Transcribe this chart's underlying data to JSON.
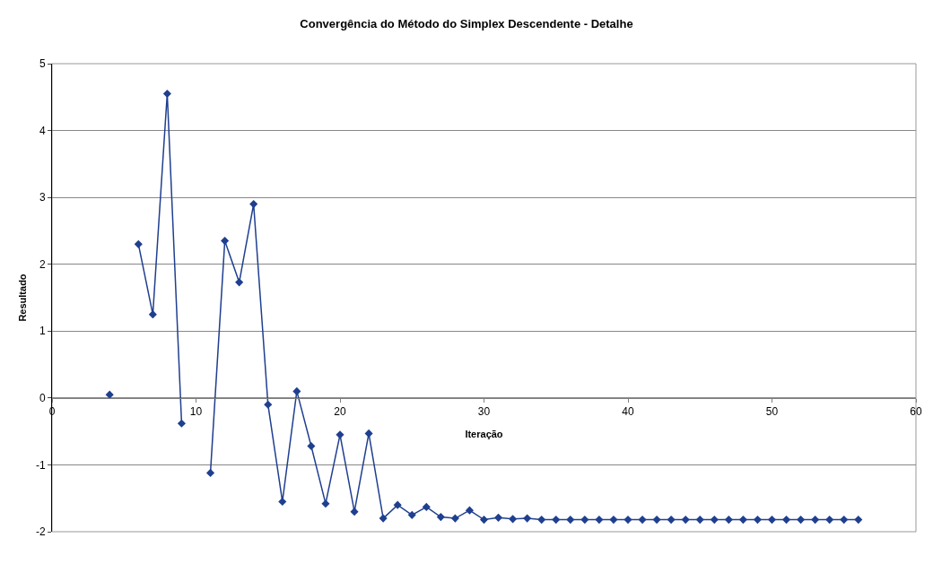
{
  "chart_data": {
    "type": "line",
    "title": "Convergência do Método do Simplex Descendente - Detalhe",
    "xlabel": "Iteração",
    "ylabel": "Resultado",
    "x": [
      4,
      5,
      6,
      7,
      8,
      9,
      10,
      11,
      12,
      13,
      14,
      15,
      16,
      17,
      18,
      19,
      20,
      21,
      22,
      23,
      24,
      25,
      26,
      27,
      28,
      29,
      30,
      31,
      32,
      33,
      34,
      35,
      36,
      37,
      38,
      39,
      40,
      41,
      42,
      43,
      44,
      45,
      46,
      47,
      48,
      49,
      50,
      51,
      52,
      53,
      54,
      55,
      56
    ],
    "series": [
      {
        "color": "#1f3f8f",
        "values": [
          0.05,
          null,
          2.3,
          1.25,
          4.55,
          -0.38,
          null,
          -1.12,
          2.35,
          1.73,
          2.9,
          -0.1,
          -1.55,
          0.1,
          -0.72,
          -1.58,
          -0.55,
          -1.7,
          -0.53,
          -1.8,
          -1.6,
          -1.75,
          -1.63,
          -1.78,
          -1.8,
          -1.68,
          -1.82,
          -1.79,
          -1.81,
          -1.8,
          -1.82,
          -1.82,
          -1.82,
          -1.82,
          -1.82,
          -1.82,
          -1.82,
          -1.82,
          -1.82,
          -1.82,
          -1.82,
          -1.82,
          -1.82,
          -1.82,
          -1.82,
          -1.82,
          -1.82,
          -1.82,
          -1.82,
          -1.82,
          -1.82,
          -1.82,
          -1.82
        ]
      }
    ],
    "xlim": [
      0,
      60
    ],
    "xticks": [
      0,
      10,
      20,
      30,
      40,
      50,
      60
    ],
    "ylim": [
      -2,
      5
    ],
    "yticks": [
      -2,
      -1,
      0,
      1,
      2,
      3,
      4,
      5
    ],
    "grid": "y",
    "marker": "diamond",
    "line_style": "solid"
  }
}
